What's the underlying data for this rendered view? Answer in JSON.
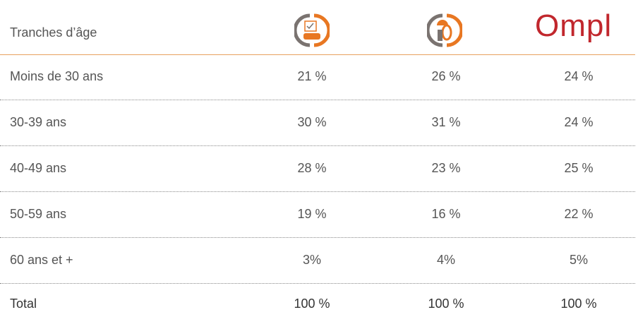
{
  "table": {
    "header": {
      "label": "Tranches d’âge",
      "logo_text": "Ompl"
    },
    "rows": [
      {
        "label": "Moins de 30 ans",
        "values": [
          "21 %",
          "26 %",
          "24 %"
        ]
      },
      {
        "label": "30-39 ans",
        "values": [
          "30 %",
          "31 %",
          "24 %"
        ]
      },
      {
        "label": "40-49 ans",
        "values": [
          "28 %",
          "23 %",
          "25 %"
        ]
      },
      {
        "label": "50-59 ans",
        "values": [
          "19 %",
          "16 %",
          "22 %"
        ]
      },
      {
        "label": "60 ans et +",
        "values": [
          "3%",
          "4%",
          "5%"
        ]
      }
    ],
    "total": {
      "label": "Total",
      "values": [
        "100 %",
        "100 %",
        "100 %"
      ]
    }
  }
}
